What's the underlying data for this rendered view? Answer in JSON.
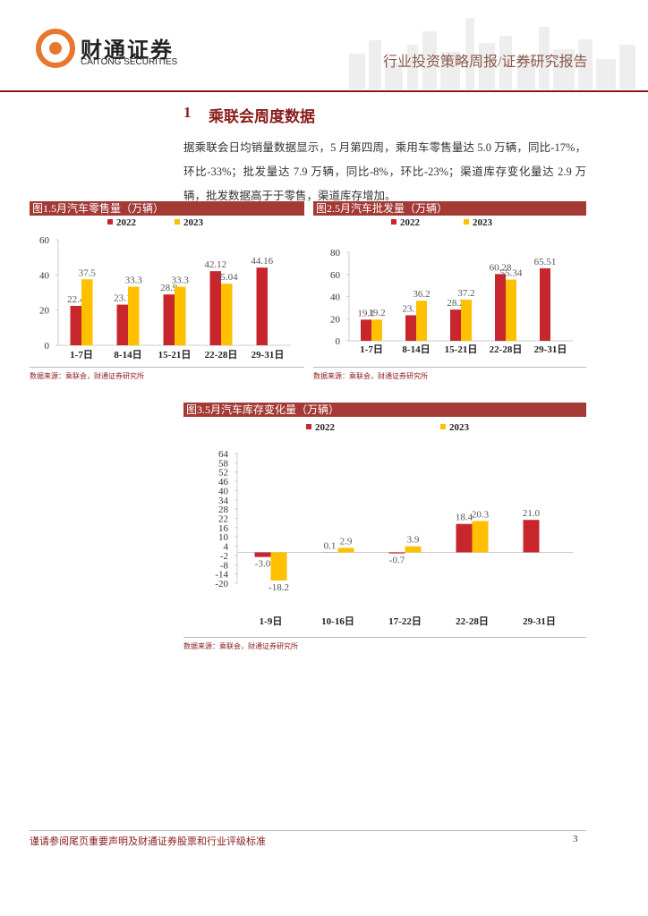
{
  "header": {
    "logo_cn": "财通证券",
    "logo_en": "CAITONG SECURITIES",
    "report_type": "行业投资策略周报/证券研究报告"
  },
  "section": {
    "number": "1",
    "title": "乘联会周度数据"
  },
  "paragraph": "据乘联会日均销量数据显示，5 月第四周，乘用车零售量达 5.0 万辆，同比-17%，环比-33%；批发量达 7.9 万辆，同比-8%，环比-23%；渠道库存变化量达 2.9 万辆，批发数据高于于零售，渠道库存增加。",
  "chart_data": [
    {
      "type": "bar",
      "title": "图1.5月汽车零售量（万辆）",
      "categories": [
        "1-7日",
        "8-14日",
        "15-21日",
        "22-28日",
        "29-31日"
      ],
      "series": [
        {
          "name": "2022",
          "color": "#c8262d",
          "values": [
            22.4,
            23.1,
            28.9,
            42.12,
            44.16
          ]
        },
        {
          "name": "2023",
          "color": "#ffc000",
          "values": [
            37.5,
            33.3,
            33.3,
            35.04,
            null
          ]
        }
      ],
      "ylim": [
        0,
        60
      ],
      "yticks": [
        0,
        20,
        40,
        60
      ],
      "source": "数据来源：乘联会，财通证券研究所"
    },
    {
      "type": "bar",
      "title": "图2.5月汽车批发量（万辆）",
      "categories": [
        "1-7日",
        "8-14日",
        "15-21日",
        "22-28日",
        "29-31日"
      ],
      "series": [
        {
          "name": "2022",
          "color": "#c8262d",
          "values": [
            19.1,
            23.1,
            28.2,
            60.28,
            65.51
          ]
        },
        {
          "name": "2023",
          "color": "#ffc000",
          "values": [
            19.2,
            36.2,
            37.2,
            55.34,
            null
          ]
        }
      ],
      "ylim": [
        0,
        80
      ],
      "yticks": [
        0,
        20,
        40,
        60,
        80
      ],
      "source": "数据来源：乘联会，财通证券研究所"
    },
    {
      "type": "bar",
      "title": "图3.5月汽车库存变化量（万辆）",
      "categories": [
        "1-9日",
        "10-16日",
        "17-22日",
        "22-28日",
        "29-31日"
      ],
      "series": [
        {
          "name": "2022",
          "color": "#c8262d",
          "values": [
            -3.0,
            0.1,
            -0.7,
            18.4,
            21.0
          ],
          "value_labels": [
            "-3.0",
            "0.1",
            "-0.7",
            "18.4",
            "21.0"
          ]
        },
        {
          "name": "2023",
          "color": "#ffc000",
          "values": [
            -18.2,
            2.9,
            3.9,
            20.3,
            null
          ],
          "value_labels": [
            "-18.2",
            "2.9",
            "3.9",
            "20.3",
            null
          ]
        }
      ],
      "ylim": [
        -20,
        64
      ],
      "yticks": [
        -20,
        -14,
        -8,
        -2,
        4,
        10,
        16,
        22,
        28,
        34,
        40,
        46,
        52,
        58,
        64
      ],
      "source": "数据来源：乘联会，财通证券研究所"
    }
  ],
  "footer": {
    "disclaimer": "谨请参阅尾页重要声明及财通证券股票和行业评级标准",
    "page": 3
  }
}
